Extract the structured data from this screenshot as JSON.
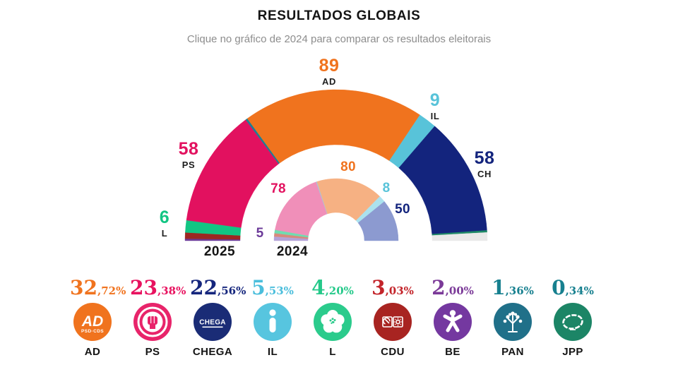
{
  "header": {
    "title": "RESULTADOS GLOBAIS",
    "subtitle": "Clique no gráfico de 2024 para comparar os resultados eleitorais"
  },
  "chart_data": {
    "type": "hemicycle",
    "description": "Parliament seat distribution comparison, two half-donut rings",
    "total_seats_per_ring": 230,
    "year_labels": [
      "2025",
      "2024"
    ],
    "rings": [
      {
        "year": "2025",
        "position": "outer",
        "segments": [
          {
            "party": "BE",
            "seats": 1,
            "color": "#6C3B99"
          },
          {
            "party": "CDU",
            "seats": 3,
            "color": "#9C2722"
          },
          {
            "party": "L",
            "seats": 6,
            "color": "#12C583"
          },
          {
            "party": "PS",
            "seats": 58,
            "color": "#E2115F"
          },
          {
            "party": "PAN",
            "seats": 1,
            "color": "#1D7F93"
          },
          {
            "party": "AD",
            "seats": 89,
            "color": "#F0731E"
          },
          {
            "party": "IL",
            "seats": 9,
            "color": "#58C3D9"
          },
          {
            "party": "CH",
            "seats": 58,
            "color": "#13247D"
          },
          {
            "party": "JPP",
            "seats": 1,
            "color": "#1F8A67"
          },
          {
            "party": "",
            "seats": 4,
            "color": "#E9E9E9"
          }
        ]
      },
      {
        "year": "2024",
        "position": "inner",
        "segments": [
          {
            "party": "BE",
            "seats": 5,
            "color": "#B4A3D8"
          },
          {
            "party": "CDU",
            "seats": 4,
            "color": "#D78A7C"
          },
          {
            "party": "L",
            "seats": 4,
            "color": "#70DCB0"
          },
          {
            "party": "PS",
            "seats": 78,
            "color": "#F08FB9"
          },
          {
            "party": "PAN",
            "seats": 1,
            "color": "#9FC9DE"
          },
          {
            "party": "AD",
            "seats": 80,
            "color": "#F6B183"
          },
          {
            "party": "IL",
            "seats": 8,
            "color": "#ABE2EE"
          },
          {
            "party": "CH",
            "seats": 50,
            "color": "#8C9AD0"
          }
        ]
      }
    ],
    "outer_labels": [
      {
        "value": "89",
        "party": "AD",
        "color": "#F0731E"
      },
      {
        "value": "9",
        "party": "IL",
        "color": "#58C3D9"
      },
      {
        "value": "58",
        "party": "CH",
        "color": "#13247D"
      },
      {
        "value": "58",
        "party": "PS",
        "color": "#E2115F"
      },
      {
        "value": "6",
        "party": "L",
        "color": "#12C583"
      }
    ],
    "inner_labels": [
      {
        "value": "80",
        "party": "AD",
        "color": "#F0731E"
      },
      {
        "value": "78",
        "party": "PS",
        "color": "#E2115F"
      },
      {
        "value": "8",
        "party": "IL",
        "color": "#58C3D9"
      },
      {
        "value": "50",
        "party": "CH",
        "color": "#13247D"
      },
      {
        "value": "5",
        "party": "BE",
        "color": "#6C3B99"
      }
    ]
  },
  "parties": [
    {
      "abbr": "AD",
      "percent": "32,72%",
      "color": "#F0731E",
      "logo_color": "#F0731E",
      "icon": "ad-logo"
    },
    {
      "abbr": "PS",
      "percent": "23,38%",
      "color": "#E8125F",
      "logo_color": "#E8246A",
      "icon": "ps-fist-logo"
    },
    {
      "abbr": "CHEGA",
      "percent": "22,56%",
      "color": "#15267D",
      "logo_color": "#1A2C76",
      "icon": "chega-logo"
    },
    {
      "abbr": "IL",
      "percent": "5,53%",
      "color": "#4BBEDC",
      "logo_color": "#57C5DF",
      "icon": "il-logo"
    },
    {
      "abbr": "L",
      "percent": "4,20%",
      "color": "#25C98A",
      "logo_color": "#2BCB8C",
      "icon": "livre-flower-logo"
    },
    {
      "abbr": "CDU",
      "percent": "3,03%",
      "color": "#C3242A",
      "logo_color": "#A82421",
      "icon": "cdu-logo"
    },
    {
      "abbr": "BE",
      "percent": "2,00%",
      "color": "#7B3A98",
      "logo_color": "#7438A0",
      "icon": "be-star-logo"
    },
    {
      "abbr": "PAN",
      "percent": "1,36%",
      "color": "#17808F",
      "logo_color": "#207089",
      "icon": "pan-tree-logo"
    },
    {
      "abbr": "JPP",
      "percent": "0,34%",
      "color": "#17808F",
      "logo_color": "#1C8566",
      "icon": "jpp-logo"
    }
  ]
}
